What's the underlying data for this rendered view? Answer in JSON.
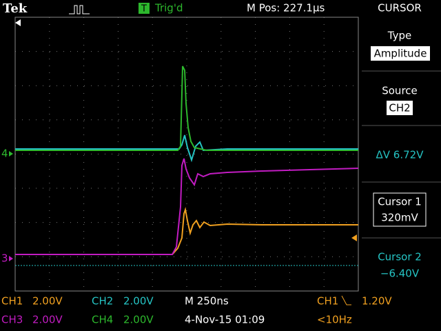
{
  "header": {
    "logo": "Tek",
    "trigger_icon": "T",
    "trigger_status": "Trig'd",
    "position": "M Pos: 227.1µs",
    "menu_title": "CURSOR"
  },
  "menu": {
    "type_label": "Type",
    "type_value": "Amplitude",
    "source_label": "Source",
    "source_value": "CH2",
    "delta": "ΔV 6.72V",
    "cursor1_label": "Cursor 1",
    "cursor1_value": "320mV",
    "cursor2_label": "Cursor 2",
    "cursor2_value": "−6.40V"
  },
  "markers": {
    "ch4": "4",
    "ch3": "3"
  },
  "status": {
    "ch1": "CH1",
    "ch1_scale": "2.00V",
    "ch2": "CH2",
    "ch2_scale": "2.00V",
    "timebase": "M 250ns",
    "trigger_source": "CH1",
    "trigger_level": "1.20V",
    "ch3": "CH3",
    "ch3_scale": "2.00V",
    "ch4": "CH4",
    "ch4_scale": "2.00V",
    "datetime": "4-Nov-15 01:09",
    "frequency": "<10Hz"
  }
}
